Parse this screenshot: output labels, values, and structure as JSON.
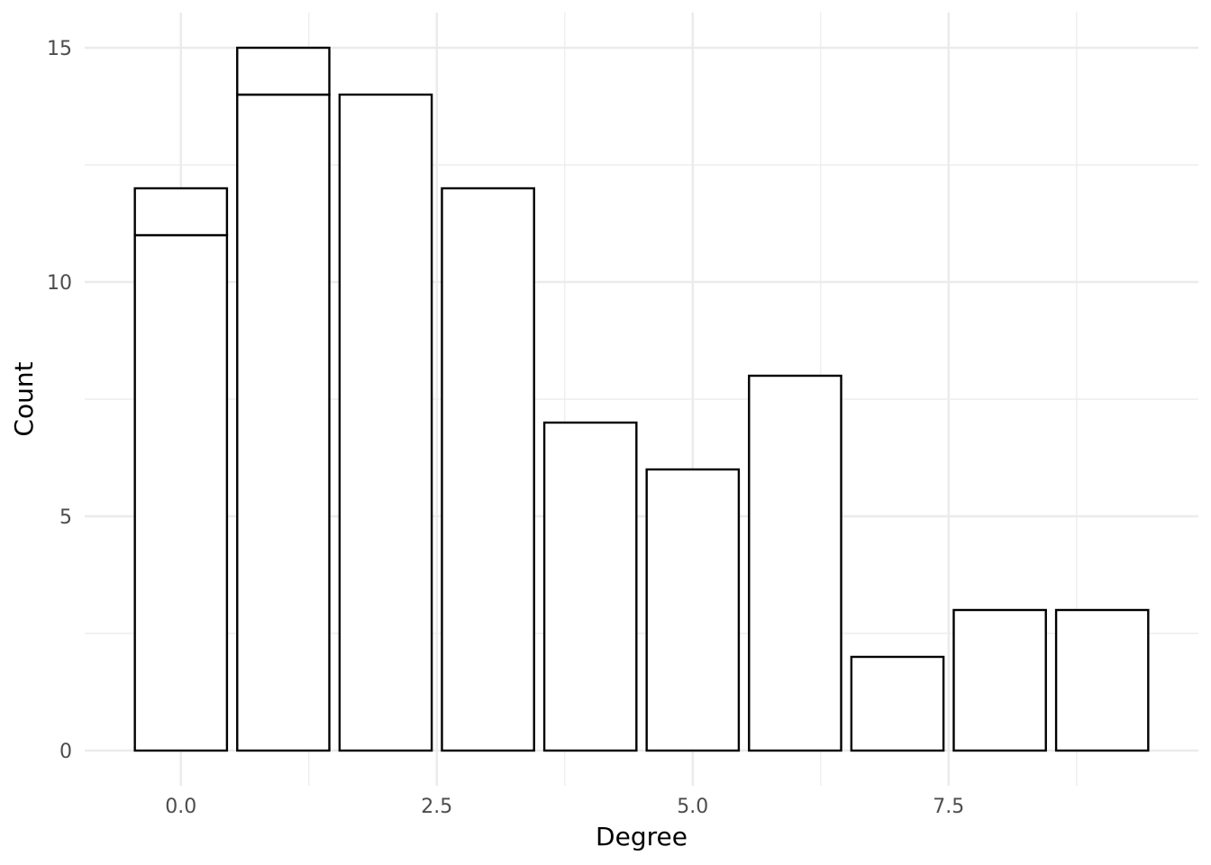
{
  "chart_data": {
    "type": "bar",
    "xlabel": "Degree",
    "ylabel": "Count",
    "xlim": [
      -0.94,
      9.94
    ],
    "ylim": [
      -0.75,
      15.75
    ],
    "x_ticks": [
      0.0,
      2.5,
      5.0,
      7.5
    ],
    "x_tick_labels": [
      "0.0",
      "2.5",
      "5.0",
      "7.5"
    ],
    "y_ticks": [
      0,
      5,
      10,
      15
    ],
    "y_tick_labels": [
      "0",
      "5",
      "10",
      "15"
    ],
    "bar_width": 0.9,
    "grid": true,
    "fill_color": "#ffffff",
    "stroke_color": "#000000",
    "series": [
      {
        "x": [
          0,
          1,
          2,
          3,
          4,
          5,
          6,
          7,
          8,
          9
        ],
        "values": [
          11,
          14,
          14,
          12,
          7,
          6,
          8,
          2,
          3,
          3
        ]
      },
      {
        "x": [
          0,
          1
        ],
        "values": [
          1,
          1
        ]
      }
    ]
  }
}
